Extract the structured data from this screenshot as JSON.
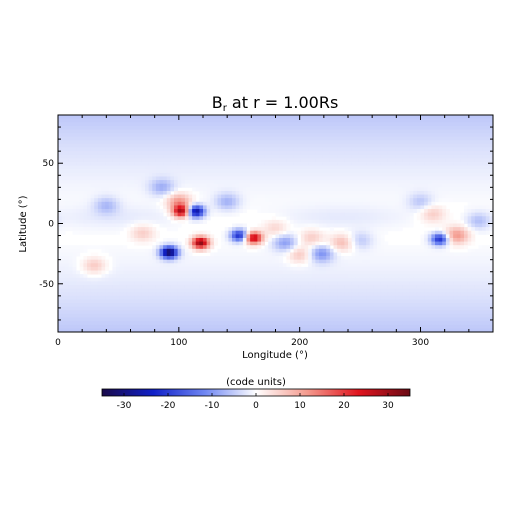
{
  "chart_data": {
    "type": "heatmap",
    "title_main": "B",
    "title_sub": "r",
    "title_rest": " at r = 1.00Rs",
    "xlabel": "Longitude (°)",
    "ylabel": "Latitude (°)",
    "xlim": [
      0,
      360
    ],
    "ylim": [
      -90,
      90
    ],
    "xticks": [
      0,
      100,
      200,
      300
    ],
    "yticks": [
      -50,
      0,
      50
    ],
    "colorbar": {
      "label": "(code units)",
      "range": [
        -35,
        35
      ],
      "ticks": [
        -30,
        -20,
        -10,
        0,
        10,
        20,
        30
      ],
      "colors": [
        "#1a0a4a",
        "#1020c8",
        "#6f86f2",
        "#ffffff",
        "#f49a8e",
        "#e0141e",
        "#6a0a14"
      ]
    },
    "field": {
      "background_polar_value": -6,
      "regions": [
        {
          "lon": 30,
          "lat": -35,
          "value": 7
        },
        {
          "lon": 40,
          "lat": 15,
          "value": -6
        },
        {
          "lon": 70,
          "lat": -8,
          "value": 6
        },
        {
          "lon": 86,
          "lat": 30,
          "value": -7
        },
        {
          "lon": 100,
          "lat": 18,
          "value": 12
        },
        {
          "lon": 102,
          "lat": 10,
          "value": 28
        },
        {
          "lon": 114,
          "lat": 10,
          "value": -28
        },
        {
          "lon": 92,
          "lat": -24,
          "value": -33
        },
        {
          "lon": 118,
          "lat": -16,
          "value": 32
        },
        {
          "lon": 150,
          "lat": -10,
          "value": -22
        },
        {
          "lon": 162,
          "lat": -12,
          "value": 28
        },
        {
          "lon": 140,
          "lat": 18,
          "value": -7
        },
        {
          "lon": 180,
          "lat": -4,
          "value": 5
        },
        {
          "lon": 188,
          "lat": -16,
          "value": -9
        },
        {
          "lon": 200,
          "lat": -26,
          "value": 7
        },
        {
          "lon": 210,
          "lat": -12,
          "value": 6
        },
        {
          "lon": 218,
          "lat": -25,
          "value": -10
        },
        {
          "lon": 235,
          "lat": -16,
          "value": 8
        },
        {
          "lon": 250,
          "lat": -14,
          "value": -5
        },
        {
          "lon": 300,
          "lat": 18,
          "value": -5
        },
        {
          "lon": 310,
          "lat": 8,
          "value": 6
        },
        {
          "lon": 316,
          "lat": -13,
          "value": -22
        },
        {
          "lon": 330,
          "lat": -10,
          "value": 12
        },
        {
          "lon": 348,
          "lat": 2,
          "value": -6
        }
      ]
    }
  }
}
